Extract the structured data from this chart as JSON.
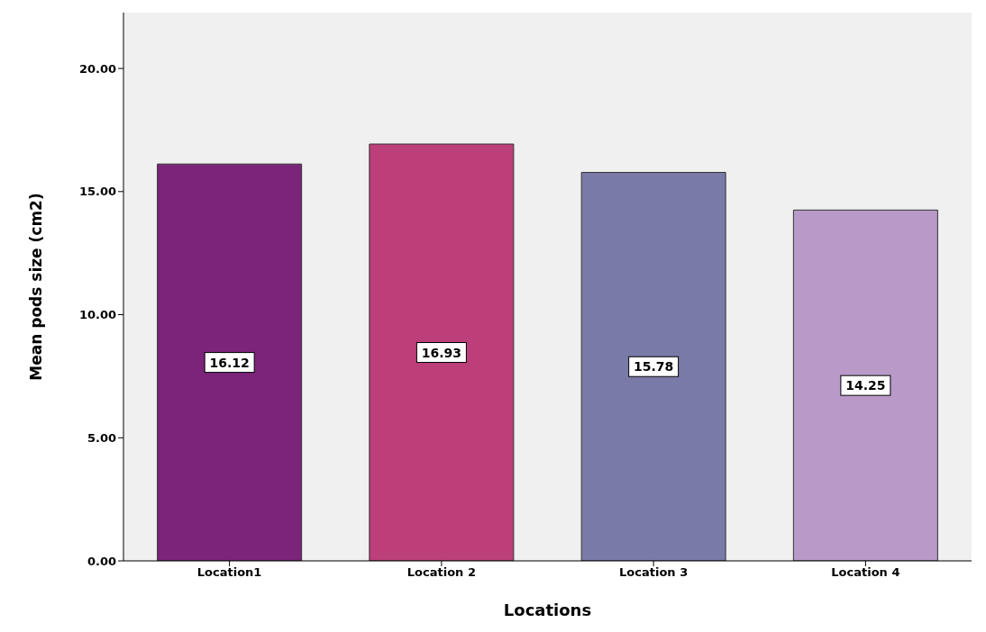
{
  "chart_data": {
    "type": "bar",
    "xlabel": "Locations",
    "ylabel": "Mean pods size (cm2)",
    "categories": [
      "Location1",
      "Location 2",
      "Location 3",
      "Location 4"
    ],
    "values": [
      16.12,
      16.93,
      15.78,
      14.25
    ],
    "colors": [
      "#7b2479",
      "#bc3f7a",
      "#7a7aa8",
      "#b899c8"
    ],
    "ylim": [
      0,
      22.27
    ],
    "yticks": [
      {
        "value": 0,
        "label": "0.00"
      },
      {
        "value": 5,
        "label": "5.00"
      },
      {
        "value": 10,
        "label": "10.00"
      },
      {
        "value": 15,
        "label": "15.00"
      },
      {
        "value": 20,
        "label": "20.00"
      }
    ],
    "grid": false,
    "data_labels": true
  }
}
